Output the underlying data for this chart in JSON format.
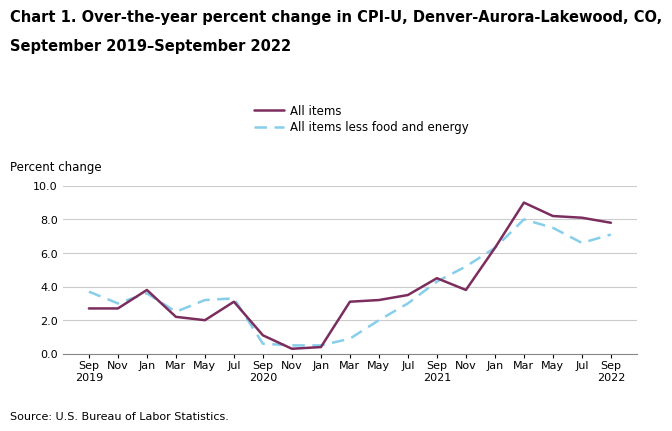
{
  "title_line1": "Chart 1. Over-the-year percent change in CPI-U, Denver-Aurora-Lakewood, CO,",
  "title_line2": "September 2019–September 2022",
  "ylabel": "Percent change",
  "source": "Source: U.S. Bureau of Labor Statistics.",
  "ylim": [
    0.0,
    10.0
  ],
  "yticks": [
    0.0,
    2.0,
    4.0,
    6.0,
    8.0,
    10.0
  ],
  "all_items": [
    2.7,
    2.7,
    3.8,
    2.2,
    2.0,
    3.1,
    1.1,
    0.3,
    0.4,
    3.1,
    3.2,
    3.5,
    4.5,
    3.8,
    6.3,
    9.0,
    8.2,
    8.1,
    7.8
  ],
  "all_items_less": [
    3.7,
    3.0,
    3.6,
    2.5,
    3.2,
    3.3,
    0.6,
    0.5,
    0.5,
    0.9,
    2.0,
    3.0,
    4.3,
    5.2,
    6.3,
    8.0,
    7.5,
    6.6,
    7.1
  ],
  "all_items_color": "#7B2D5E",
  "all_items_less_color": "#87CEEB",
  "legend_label_all": "All items",
  "legend_label_less": "All items less food and energy",
  "background_color": "#ffffff",
  "title_fontsize": 10.5,
  "axis_fontsize": 8.5,
  "tick_fontsize": 8.0,
  "source_fontsize": 8.0
}
